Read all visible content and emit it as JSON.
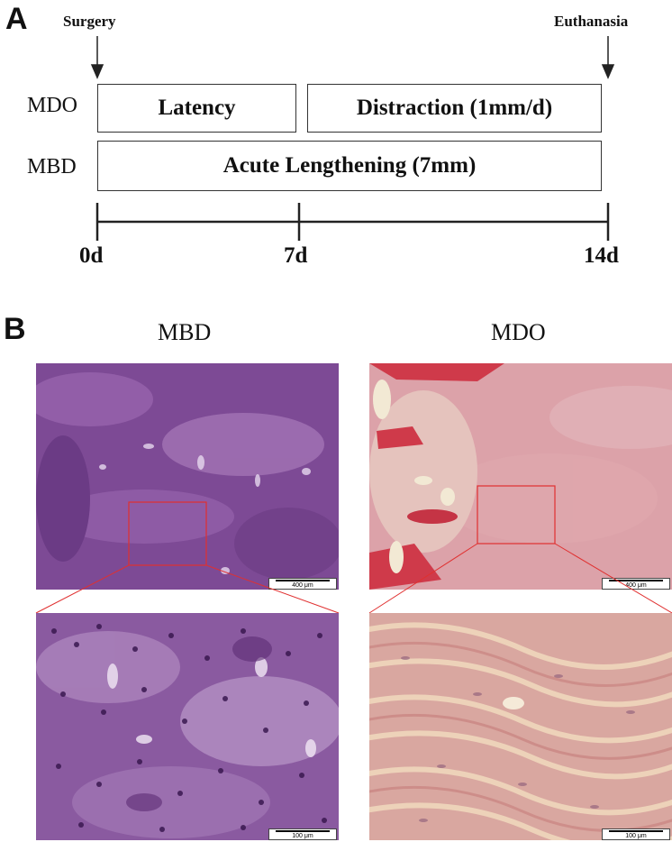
{
  "panel_a": {
    "letter": "A",
    "events": {
      "start": "Surgery",
      "end": "Euthanasia"
    },
    "rows": [
      {
        "label": "MDO",
        "phases": [
          "Latency",
          "Distraction (1mm/d)"
        ]
      },
      {
        "label": "MBD",
        "phases": [
          "Acute Lengthening (7mm)"
        ]
      }
    ],
    "timeline": {
      "ticks": [
        "0d",
        "7d",
        "14d"
      ]
    }
  },
  "panel_b": {
    "letter": "B",
    "columns": [
      {
        "title": "MBD",
        "scale_low": "400 μm",
        "scale_high": "100 μm",
        "stain": "hematoxylin-eosin, dense purple"
      },
      {
        "title": "MDO",
        "scale_low": "400 μm",
        "scale_high": "100 μm",
        "stain": "hematoxylin-eosin, pink fibrous"
      }
    ]
  },
  "colors": {
    "mbd_tissue": "#8a4f9e",
    "mdo_tissue": "#d98a9a",
    "inset_box": "#e03030",
    "axis": "#222222"
  }
}
